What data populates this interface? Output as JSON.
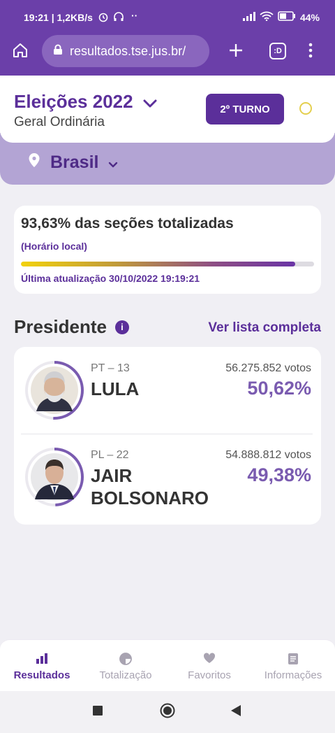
{
  "status_bar": {
    "time": "19:21",
    "speed": "1,2KB/s",
    "battery": "44%"
  },
  "browser": {
    "url": "resultados.tse.jus.br/",
    "tab_count_label": ":D"
  },
  "header": {
    "title": "Eleições 2022",
    "subtitle": "Geral Ordinária",
    "round_button": "2º TURNO",
    "location": "Brasil"
  },
  "progress": {
    "headline": "93,63% das seções totalizadas",
    "note": "(Horário local)",
    "percent": 93.63,
    "last_update": "Última atualização 30/10/2022 19:19:21"
  },
  "section": {
    "title": "Presidente",
    "info_icon": "i",
    "see_all": "Ver lista completa"
  },
  "candidates": [
    {
      "party": "PT – 13",
      "name": "LULA",
      "votes": "56.275.852 votos",
      "percent": "50,62%",
      "share": 50.62
    },
    {
      "party": "PL – 22",
      "name": "JAIR BOLSONARO",
      "votes": "54.888.812 votos",
      "percent": "49,38%",
      "share": 49.38
    }
  ],
  "bottom_nav": [
    {
      "label": "Resultados",
      "icon": "bar-chart-icon",
      "active": true
    },
    {
      "label": "Totalização",
      "icon": "pie-icon",
      "active": false
    },
    {
      "label": "Favoritos",
      "icon": "heart-icon",
      "active": false
    },
    {
      "label": "Informações",
      "icon": "document-icon",
      "active": false
    }
  ],
  "colors": {
    "brand_purple": "#5b2f9a",
    "bar_purple": "#6b3fa9",
    "lilac": "#b3a4d4",
    "yellow": "#f2d20c"
  }
}
